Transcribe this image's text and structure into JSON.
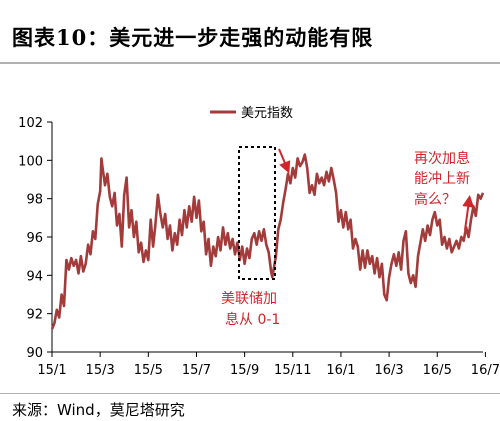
{
  "title": "图表10：美元进一步走强的动能有限",
  "source": "来源：Wind，莫尼塔研究",
  "chart_data": {
    "type": "line",
    "legend": [
      "美元指数"
    ],
    "legend_position": "top-center",
    "series_color": "#a33b3b",
    "annotation_color": "#d0262b",
    "grid": false,
    "ylim": [
      90,
      102
    ],
    "yticks": [
      "90",
      "92",
      "94",
      "96",
      "98",
      "100",
      "102"
    ],
    "xticks": [
      "15/1",
      "15/3",
      "15/5",
      "15/7",
      "15/9",
      "15/11",
      "16/1",
      "16/3",
      "16/5",
      "16/7",
      "16/9"
    ],
    "annotations": [
      {
        "lines": [
          "美联储加",
          "息从 0-1"
        ]
      },
      {
        "lines": [
          "再次加息",
          "能冲上新",
          "高么？"
        ]
      }
    ],
    "series": [
      {
        "name": "美元指数",
        "points": [
          [
            0,
            91.2
          ],
          [
            0.1,
            91.5
          ],
          [
            0.2,
            92.2
          ],
          [
            0.3,
            91.8
          ],
          [
            0.4,
            93.0
          ],
          [
            0.5,
            92.4
          ],
          [
            0.6,
            94.8
          ],
          [
            0.7,
            94.3
          ],
          [
            0.8,
            94.9
          ],
          [
            0.9,
            94.5
          ],
          [
            1.0,
            94.8
          ],
          [
            1.1,
            94.1
          ],
          [
            1.2,
            95.0
          ],
          [
            1.3,
            94.2
          ],
          [
            1.4,
            94.6
          ],
          [
            1.5,
            95.6
          ],
          [
            1.6,
            95.1
          ],
          [
            1.7,
            96.3
          ],
          [
            1.8,
            95.9
          ],
          [
            1.9,
            97.7
          ],
          [
            2.0,
            98.4
          ],
          [
            2.05,
            100.1
          ],
          [
            2.1,
            99.6
          ],
          [
            2.2,
            98.7
          ],
          [
            2.3,
            99.3
          ],
          [
            2.4,
            98.1
          ],
          [
            2.5,
            97.6
          ],
          [
            2.6,
            98.3
          ],
          [
            2.7,
            96.6
          ],
          [
            2.8,
            97.2
          ],
          [
            2.9,
            95.5
          ],
          [
            3.0,
            98.2
          ],
          [
            3.1,
            99.1
          ],
          [
            3.2,
            96.5
          ],
          [
            3.3,
            97.4
          ],
          [
            3.4,
            96.0
          ],
          [
            3.5,
            96.8
          ],
          [
            3.6,
            95.2
          ],
          [
            3.7,
            95.7
          ],
          [
            3.8,
            94.7
          ],
          [
            3.9,
            95.3
          ],
          [
            4.0,
            94.8
          ],
          [
            4.1,
            96.9
          ],
          [
            4.2,
            95.5
          ],
          [
            4.3,
            96.7
          ],
          [
            4.4,
            98.2
          ],
          [
            4.5,
            97.2
          ],
          [
            4.6,
            96.5
          ],
          [
            4.7,
            97.2
          ],
          [
            4.8,
            95.9
          ],
          [
            4.9,
            96.6
          ],
          [
            5.0,
            95.3
          ],
          [
            5.1,
            96.2
          ],
          [
            5.2,
            95.6
          ],
          [
            5.3,
            96.9
          ],
          [
            5.4,
            96.1
          ],
          [
            5.5,
            97.4
          ],
          [
            5.6,
            96.5
          ],
          [
            5.7,
            97.6
          ],
          [
            5.8,
            96.8
          ],
          [
            5.9,
            98.1
          ],
          [
            6.0,
            97.0
          ],
          [
            6.1,
            97.9
          ],
          [
            6.2,
            96.3
          ],
          [
            6.3,
            96.8
          ],
          [
            6.4,
            95.1
          ],
          [
            6.5,
            95.9
          ],
          [
            6.6,
            94.5
          ],
          [
            6.7,
            95.5
          ],
          [
            6.8,
            95.0
          ],
          [
            6.9,
            96.0
          ],
          [
            7.0,
            95.3
          ],
          [
            7.1,
            96.5
          ],
          [
            7.2,
            95.6
          ],
          [
            7.3,
            96.2
          ],
          [
            7.4,
            95.4
          ],
          [
            7.5,
            95.9
          ],
          [
            7.6,
            95.1
          ],
          [
            7.7,
            95.7
          ],
          [
            7.8,
            94.8
          ],
          [
            7.9,
            95.5
          ],
          [
            8.0,
            94.6
          ],
          [
            8.1,
            95.4
          ],
          [
            8.2,
            94.9
          ],
          [
            8.3,
            95.9
          ],
          [
            8.4,
            96.2
          ],
          [
            8.5,
            95.6
          ],
          [
            8.6,
            96.3
          ],
          [
            8.7,
            95.8
          ],
          [
            8.8,
            96.4
          ],
          [
            8.9,
            95.6
          ],
          [
            9.0,
            95.2
          ],
          [
            9.1,
            94.2
          ],
          [
            9.15,
            93.9
          ],
          [
            9.3,
            95.0
          ],
          [
            9.4,
            96.4
          ],
          [
            9.5,
            96.9
          ],
          [
            9.6,
            97.8
          ],
          [
            9.7,
            98.5
          ],
          [
            9.8,
            99.3
          ],
          [
            9.9,
            98.8
          ],
          [
            10.0,
            99.6
          ],
          [
            10.1,
            99.1
          ],
          [
            10.2,
            100.1
          ],
          [
            10.3,
            99.7
          ],
          [
            10.4,
            99.9
          ],
          [
            10.5,
            100.3
          ],
          [
            10.6,
            99.6
          ],
          [
            10.7,
            98.3
          ],
          [
            10.8,
            98.7
          ],
          [
            10.9,
            98.2
          ],
          [
            11.0,
            99.3
          ],
          [
            11.1,
            98.8
          ],
          [
            11.2,
            99.1
          ],
          [
            11.3,
            98.7
          ],
          [
            11.4,
            99.4
          ],
          [
            11.5,
            98.9
          ],
          [
            11.6,
            99.6
          ],
          [
            11.7,
            99.0
          ],
          [
            11.8,
            98.3
          ],
          [
            11.9,
            96.8
          ],
          [
            12.0,
            97.4
          ],
          [
            12.1,
            96.5
          ],
          [
            12.2,
            97.3
          ],
          [
            12.3,
            96.4
          ],
          [
            12.4,
            96.9
          ],
          [
            12.5,
            95.4
          ],
          [
            12.6,
            95.9
          ],
          [
            12.7,
            95.5
          ],
          [
            12.8,
            94.3
          ],
          [
            12.9,
            95.3
          ],
          [
            13.0,
            94.4
          ],
          [
            13.1,
            95.3
          ],
          [
            13.2,
            94.6
          ],
          [
            13.3,
            95.0
          ],
          [
            13.4,
            94.1
          ],
          [
            13.5,
            94.9
          ],
          [
            13.6,
            93.9
          ],
          [
            13.7,
            94.6
          ],
          [
            13.8,
            93.0
          ],
          [
            13.9,
            92.7
          ],
          [
            14.0,
            93.9
          ],
          [
            14.1,
            94.6
          ],
          [
            14.2,
            95.1
          ],
          [
            14.3,
            94.5
          ],
          [
            14.4,
            95.2
          ],
          [
            14.5,
            94.3
          ],
          [
            14.6,
            95.8
          ],
          [
            14.7,
            96.3
          ],
          [
            14.8,
            94.1
          ],
          [
            14.9,
            93.6
          ],
          [
            15.0,
            94.0
          ],
          [
            15.1,
            93.4
          ],
          [
            15.2,
            95.0
          ],
          [
            15.3,
            95.7
          ],
          [
            15.4,
            96.4
          ],
          [
            15.5,
            95.8
          ],
          [
            15.6,
            96.6
          ],
          [
            15.7,
            96.1
          ],
          [
            15.8,
            96.9
          ],
          [
            15.9,
            97.3
          ],
          [
            16.0,
            96.6
          ],
          [
            16.1,
            96.9
          ],
          [
            16.2,
            95.6
          ],
          [
            16.3,
            96.0
          ],
          [
            16.4,
            95.4
          ],
          [
            16.5,
            95.9
          ],
          [
            16.6,
            95.2
          ],
          [
            16.7,
            95.5
          ],
          [
            16.8,
            95.8
          ],
          [
            16.9,
            95.4
          ],
          [
            17.0,
            96.0
          ],
          [
            17.1,
            95.8
          ],
          [
            17.2,
            96.5
          ],
          [
            17.3,
            96.0
          ],
          [
            17.4,
            96.9
          ],
          [
            17.5,
            97.6
          ],
          [
            17.6,
            97.1
          ],
          [
            17.7,
            98.2
          ],
          [
            17.8,
            98.0
          ],
          [
            17.9,
            98.3
          ]
        ]
      }
    ]
  }
}
